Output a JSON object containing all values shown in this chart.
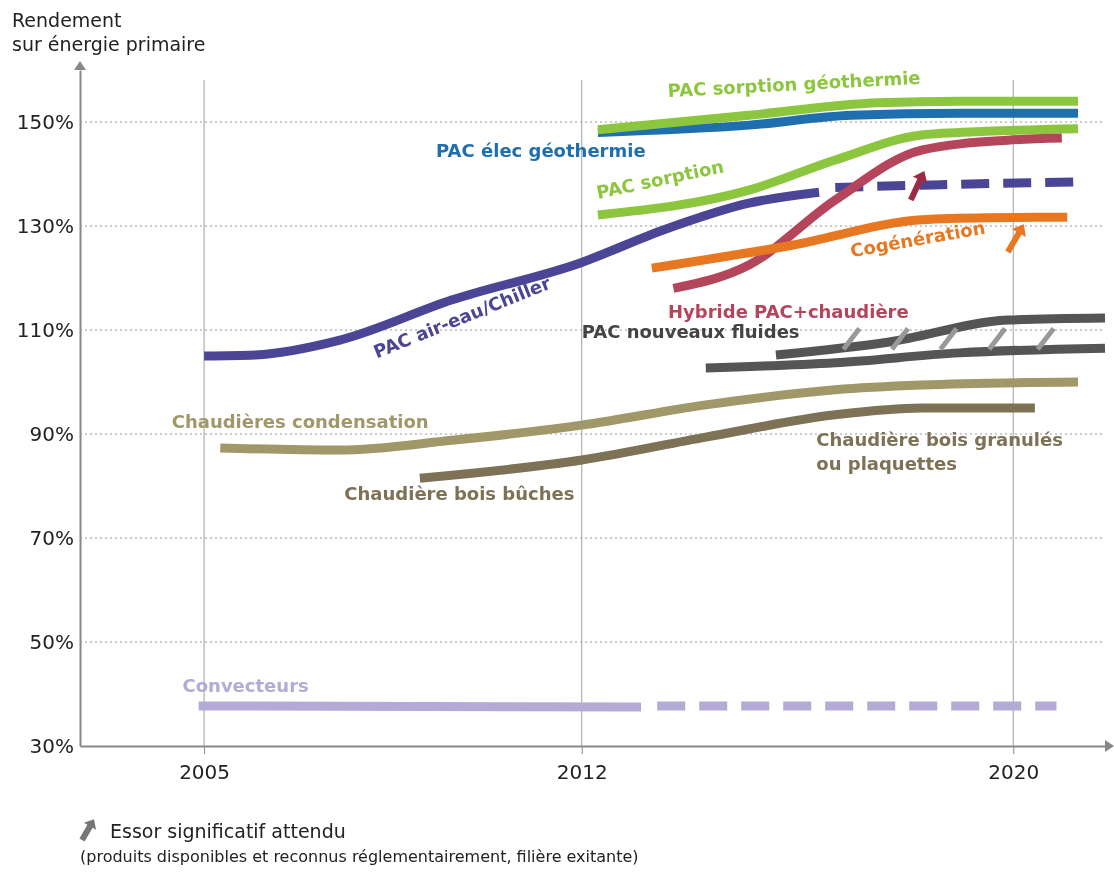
{
  "chart_data": {
    "type": "line",
    "ylabel": "Rendement sur énergie primaire",
    "xlim": [
      2002.7,
      2021.7
    ],
    "xticks": [
      2005,
      2012,
      2020
    ],
    "ylim": [
      30,
      160
    ],
    "yticks": [
      {
        "value": 30,
        "label": "30%"
      },
      {
        "value": 50,
        "label": "50%"
      },
      {
        "value": 70,
        "label": "70%"
      },
      {
        "value": 90,
        "label": "90%"
      },
      {
        "value": 110,
        "label": "110%"
      },
      {
        "value": 130,
        "label": "130%"
      },
      {
        "value": 150,
        "label": "150%"
      }
    ],
    "grid": true,
    "marker": "none",
    "series": [
      {
        "name": "PAC air-eau/Chiller",
        "color": "#4b4596",
        "x": [
          2005,
          2005.95,
          2007.5,
          2009.6,
          2012,
          2013.5,
          2015.1,
          2016.4
        ],
        "values": [
          105,
          105.2,
          108,
          115.8,
          123,
          129.2,
          134.4,
          136.5
        ]
      },
      {
        "color": "#4b4596",
        "line_style": "dashed",
        "x": [
          2016.7,
          2018.5,
          2021.2
        ],
        "values": [
          137.4,
          137.9,
          138.5
        ]
      },
      {
        "name": "PAC élec géothermie",
        "color": "#1f6fae",
        "x": [
          2012.3,
          2015.1,
          2017,
          2019,
          2021.2
        ],
        "values": [
          148,
          149.4,
          151.3,
          151.7,
          151.7
        ]
      },
      {
        "name": "PAC sorption géothermie",
        "color": "#8cc63f",
        "x": [
          2012.3,
          2015.1,
          2017.5,
          2019,
          2021.2
        ],
        "values": [
          148.5,
          151.3,
          153.7,
          154,
          154
        ]
      },
      {
        "name": "PAC sorption",
        "color": "#8cc63f",
        "x": [
          2012.3,
          2015.1,
          2016.7,
          2018.3,
          2019.5,
          2021.2
        ],
        "values": [
          132.1,
          136.9,
          142.7,
          147.5,
          148.2,
          148.7
        ]
      },
      {
        "name": "Hybride PAC+chaudière",
        "color": "#b5455b",
        "x": [
          2013.7,
          2015.1,
          2016.7,
          2018.3,
          2019.9,
          2020.9
        ],
        "values": [
          118,
          122.5,
          135,
          144.6,
          146.5,
          146.9
        ]
      },
      {
        "name": "Cogénération",
        "color": "#e87722",
        "x": [
          2013.3,
          2015.9,
          2018.3,
          2019.5,
          2021
        ],
        "values": [
          121.9,
          126.3,
          131.2,
          131.6,
          131.7
        ]
      },
      {
        "name": "PAC nouveaux fluides",
        "color": "#555555",
        "x": [
          2015.6,
          2017.7,
          2019.9,
          2021.7
        ],
        "values": [
          105.2,
          107.7,
          111.9,
          112.3
        ]
      },
      {
        "color": "#555555",
        "x": [
          2014.3,
          2016.7,
          2019,
          2021.7
        ],
        "values": [
          102.7,
          103.7,
          105.6,
          106.5
        ]
      },
      {
        "name": "Chaudières condensation",
        "color": "#a09868",
        "x": [
          2005.3,
          2007.5,
          2009.6,
          2012,
          2014.3,
          2016.7,
          2018.3,
          2021.2
        ],
        "values": [
          87.3,
          86.9,
          88.8,
          91.7,
          95.6,
          98.5,
          99.4,
          100
        ]
      },
      {
        "name": "Chaudière bois bûches",
        "color": "#7d7256",
        "x": [
          2009,
          2012,
          2014.3,
          2016.7,
          2018.3,
          2020.4
        ],
        "values": [
          81.5,
          85,
          89.4,
          93.7,
          95,
          95
        ]
      },
      {
        "name": "Convecteurs",
        "color": "#b3aad6",
        "x": [
          2004.9,
          2013.1
        ],
        "values": [
          37.7,
          37.5
        ]
      },
      {
        "color": "#b3aad6",
        "line_style": "dashed",
        "x": [
          2013.4,
          2020.8
        ],
        "values": [
          37.7,
          37.7
        ]
      }
    ],
    "annotations": [
      {
        "text": "Chaudière bois granulés ou plaquettes",
        "x": 2019.5,
        "y": 95
      },
      "Essor significatif attendu",
      "(produits disponibles et reconnus réglementairement, filière exitante)"
    ]
  }
}
